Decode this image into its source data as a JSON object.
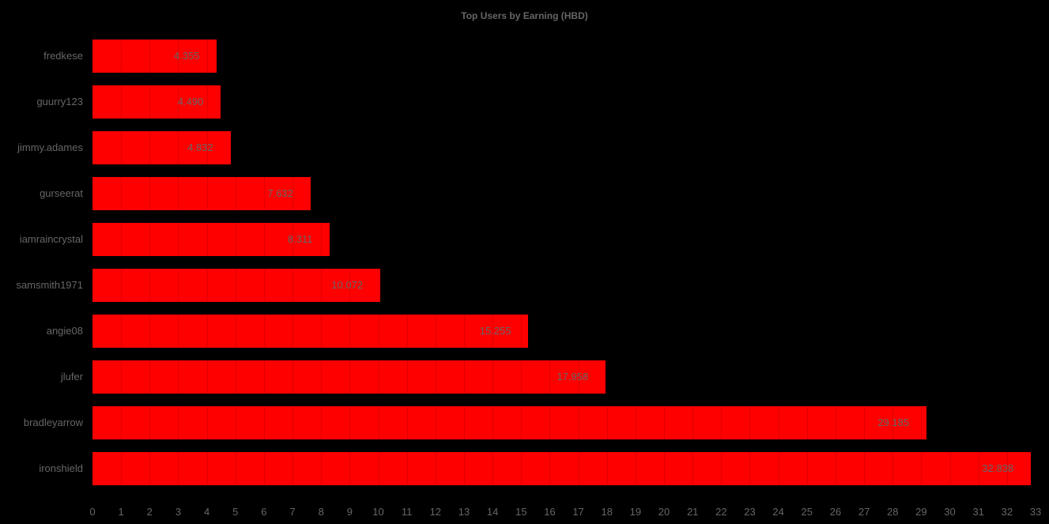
{
  "chart_data": {
    "type": "bar",
    "orientation": "horizontal",
    "title": "Top Users by Earning (HBD)",
    "xlabel": "",
    "ylabel": "",
    "categories": [
      "fredkese",
      "guurry123",
      "jimmy.adames",
      "gurseerat",
      "iamraincrystal",
      "samsmith1971",
      "angie08",
      "jlufer",
      "bradleyarrow",
      "ironshield"
    ],
    "values": [
      4.355,
      4.49,
      4.832,
      7.632,
      8.311,
      10.072,
      15.255,
      17.958,
      29.185,
      32.838
    ],
    "value_labels": [
      "4.355",
      "4.490",
      "4.832",
      "7.632",
      "8.311",
      "10.072",
      "15.255",
      "17.958",
      "29.185",
      "32.838"
    ],
    "xlim": [
      0,
      33
    ],
    "x_ticks": [
      "0",
      "1",
      "2",
      "3",
      "4",
      "5",
      "6",
      "7",
      "8",
      "9",
      "10",
      "11",
      "12",
      "13",
      "14",
      "15",
      "16",
      "17",
      "18",
      "19",
      "20",
      "21",
      "22",
      "23",
      "24",
      "25",
      "26",
      "27",
      "28",
      "29",
      "30",
      "31",
      "32",
      "33"
    ],
    "grid": true,
    "legend": "none",
    "bar_color": "#ff0000",
    "background": "#000000",
    "text_color": "#666666"
  }
}
